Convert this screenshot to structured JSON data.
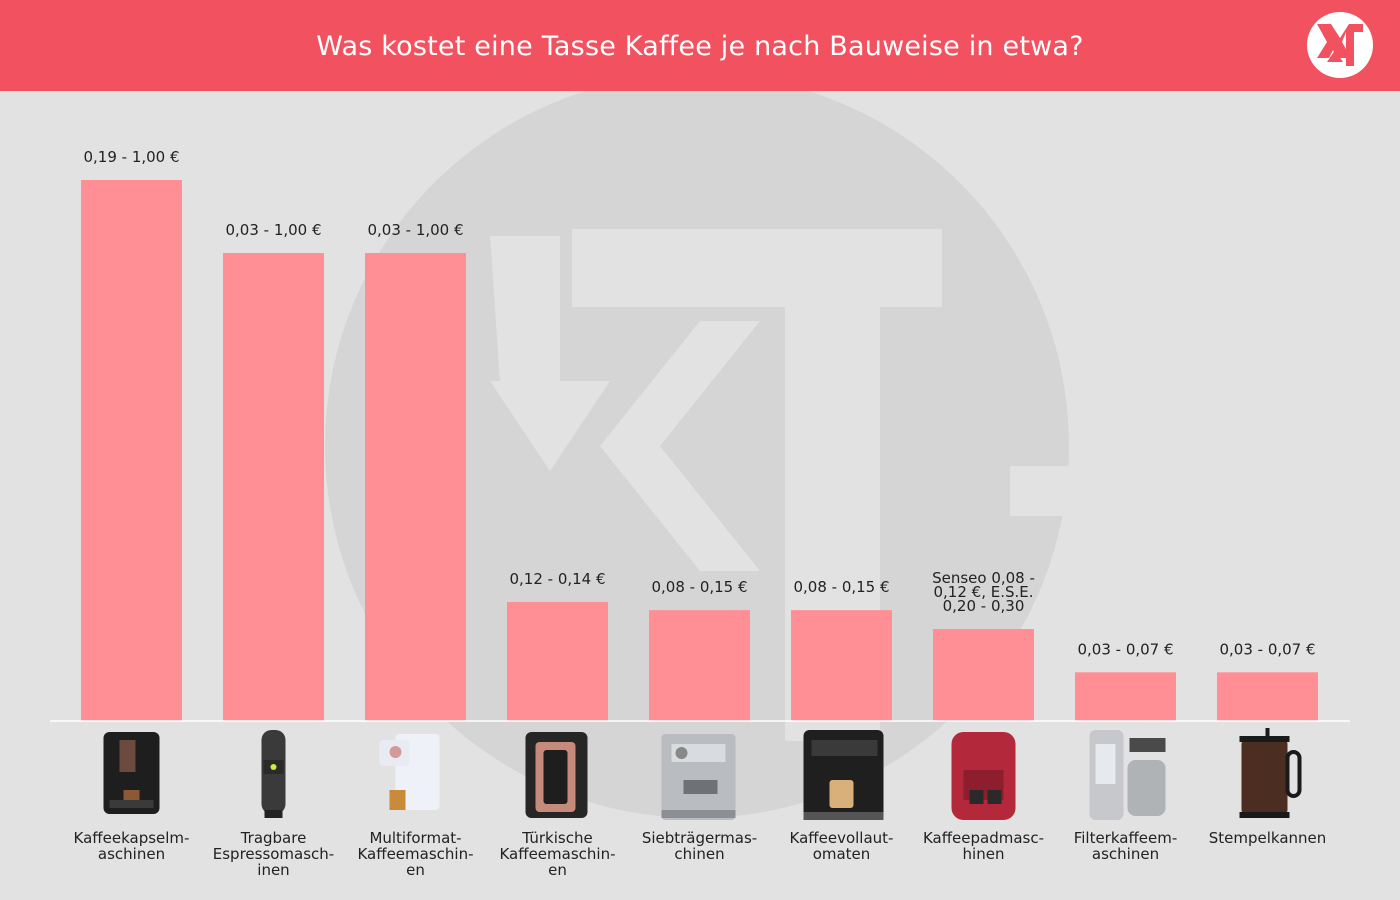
{
  "header": {
    "title": "Was kostet eine Tasse Kaffee je nach Bauweise in etwa?"
  },
  "colors": {
    "header": "#f25260",
    "bar": "#ff8f94",
    "background": "#e2e2e2",
    "watermark": "#d5d5d5"
  },
  "logo": {
    "icon": "xt-logo-icon",
    "text": "XT"
  },
  "chart_data": {
    "type": "bar",
    "title": "Was kostet eine Tasse Kaffee je nach Bauweise in etwa?",
    "xlabel": "",
    "ylabel": "",
    "ylim": [
      0,
      1.1
    ],
    "grid": false,
    "categories": [
      [
        "Kaffeekapselm-",
        "aschinen"
      ],
      [
        "Tragbare",
        "Espressomasch-",
        "inen"
      ],
      [
        "Multiformat-",
        "Kaffeemaschin-",
        "en"
      ],
      [
        "Türkische",
        "Kaffeemaschin-",
        "en"
      ],
      [
        "Siebträgermas-",
        "chinen"
      ],
      [
        "Kaffeevollaut-",
        "omaten"
      ],
      [
        "Kaffeepadmasc-",
        "hinen"
      ],
      [
        "Filterkaffeem-",
        "aschinen"
      ],
      [
        "Stempelkannen"
      ]
    ],
    "values": [
      1.0,
      0.865,
      0.865,
      0.22,
      0.205,
      0.205,
      0.17,
      0.09,
      0.09
    ],
    "value_labels": [
      [
        "0,19 - 1,00 €"
      ],
      [
        "0,03 - 1,00 €"
      ],
      [
        "0,03 - 1,00 €"
      ],
      [
        "0,12 - 0,14 €"
      ],
      [
        "0,08 - 0,15 €"
      ],
      [
        "0,08 - 0,15 €"
      ],
      [
        "Senseo 0,08 -",
        "0,12 €, E.S.E.",
        "0,20 - 0,30"
      ],
      [
        "0,03 - 0,07 €"
      ],
      [
        "0,03 - 0,07 €"
      ]
    ],
    "product_icons": [
      "capsule-machine-icon",
      "portable-espresso-maker-icon",
      "multiformat-machine-icon",
      "turkish-coffee-machine-icon",
      "portafilter-machine-icon",
      "fully-automatic-machine-icon",
      "pad-machine-icon",
      "filter-coffee-machine-icon",
      "french-press-icon"
    ]
  }
}
